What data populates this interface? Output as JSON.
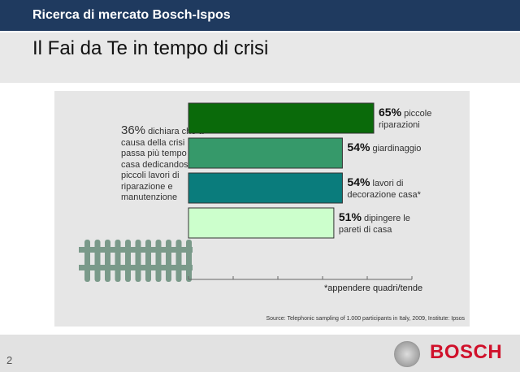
{
  "header": {
    "title": "Ricerca di mercato Bosch-Ispos"
  },
  "slide": {
    "title": "Il Fai da Te in tempo di crisi",
    "page_number": "2"
  },
  "note": {
    "value": "36%",
    "text": "dichiara che a causa della crisi passa più tempo in casa dedicandosi a piccoli lavori di riparazione e manutenzione"
  },
  "chart_data": {
    "type": "bar",
    "orientation": "horizontal",
    "categories": [
      "piccole riparazioni",
      "giardinaggio",
      "lavori di decorazione casa*",
      "dipingere le pareti di casa"
    ],
    "values": [
      65,
      54,
      54,
      51
    ],
    "value_labels": [
      "65%",
      "54%",
      "54%",
      "51%"
    ],
    "colors": [
      "#0a6a0a",
      "#36996a",
      "#0a7c7c",
      "#ccffcc"
    ],
    "xlim": [
      0,
      80
    ],
    "footnote": "*appendere quadri/tende",
    "source": "Source: Telephonic sampling of 1.000 participants in Italy, 2009, Institute: Ipsos"
  },
  "brand": {
    "logo_text": "BOSCH"
  }
}
